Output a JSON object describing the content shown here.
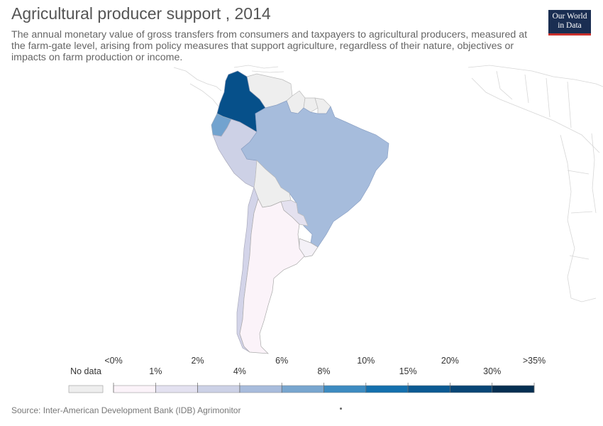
{
  "header": {
    "title": "Agricultural producer support , 2014",
    "subtitle": "The annual monetary value of gross transfers from consumers and taxpayers to agricultural producers, measured at the farm-gate level, arising from policy measures that support agriculture, regardless of their nature, objectives or impacts on farm production or income."
  },
  "logo": {
    "line1": "Our World",
    "line2": "in Data"
  },
  "source": "Source: Inter-American Development Bank (IDB) Agrimonitor",
  "legend": {
    "no_data_label": "No data",
    "no_data_color": "#eeeeee",
    "top_labels": [
      "<0%",
      "2%",
      "6%",
      "10%",
      "20%",
      ">35%"
    ],
    "bottom_labels": [
      "1%",
      "4%",
      "8%",
      "15%",
      "30%"
    ],
    "colors": [
      "#fbf3f9",
      "#e3e1f0",
      "#ccd1e6",
      "#a8bcdc",
      "#78a6cf",
      "#3d8bc1",
      "#1470ae",
      "#0c5a93",
      "#084676",
      "#052f52"
    ]
  },
  "countries": [
    {
      "name": "Colombia",
      "bin": 9,
      "color": "#06508a"
    },
    {
      "name": "Ecuador",
      "bin": 4,
      "color": "#72a3cf"
    },
    {
      "name": "Peru",
      "bin": 2,
      "color": "#cdd1e6"
    },
    {
      "name": "Brazil",
      "bin": 3,
      "color": "#a6bcdc"
    },
    {
      "name": "Chile",
      "bin": 2,
      "color": "#d3d4e9"
    },
    {
      "name": "Argentina",
      "bin": 0,
      "color": "#fbf3f9"
    },
    {
      "name": "Paraguay",
      "bin": 1,
      "color": "#e4e1ef"
    },
    {
      "name": "Uruguay",
      "bin": -1,
      "color": "#f4f1f7"
    },
    {
      "name": "Venezuela",
      "bin": -1,
      "color": "#eeeeee"
    },
    {
      "name": "Bolivia",
      "bin": -1,
      "color": "#eeeeee"
    },
    {
      "name": "Guyana",
      "bin": -1,
      "color": "#eeeeee"
    },
    {
      "name": "Suriname",
      "bin": -1,
      "color": "#eeeeee"
    },
    {
      "name": "French Guiana",
      "bin": -1,
      "color": "#eeeeee"
    }
  ]
}
